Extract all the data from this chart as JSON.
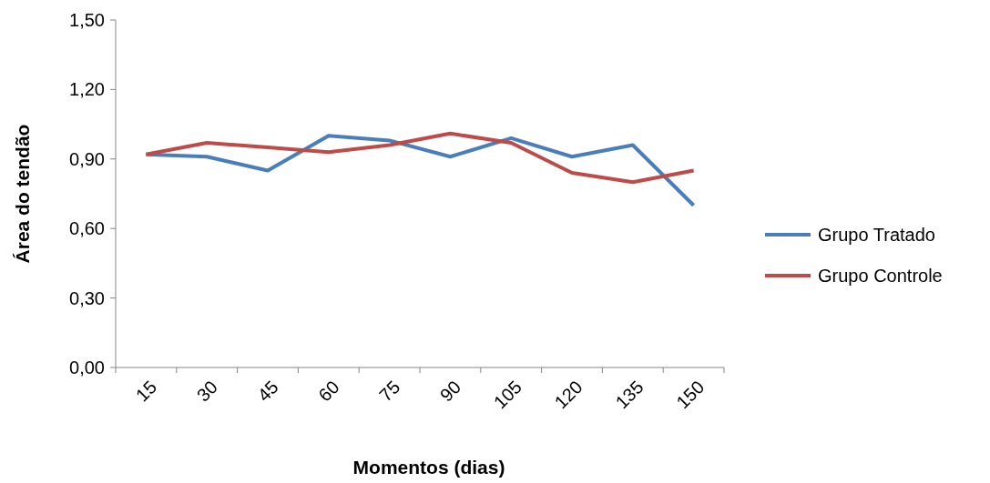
{
  "chart_data": {
    "type": "line",
    "xlabel": "Momentos (dias)",
    "ylabel": "Área do tendão",
    "categories": [
      "15",
      "30",
      "45",
      "60",
      "75",
      "90",
      "105",
      "120",
      "135",
      "150"
    ],
    "series": [
      {
        "name": "Grupo Tratado",
        "color": "#4a7ebb",
        "values": [
          0.92,
          0.91,
          0.85,
          1.0,
          0.98,
          0.91,
          0.99,
          0.91,
          0.96,
          0.7
        ]
      },
      {
        "name": "Grupo Controle",
        "color": "#be4b48",
        "values": [
          0.92,
          0.97,
          0.95,
          0.93,
          0.96,
          1.01,
          0.97,
          0.84,
          0.8,
          0.85
        ]
      }
    ],
    "ylim": [
      0,
      1.5
    ],
    "yticks": [
      {
        "value": 0,
        "label": "0,00"
      },
      {
        "value": 0.3,
        "label": "0,30"
      },
      {
        "value": 0.6,
        "label": "0,60"
      },
      {
        "value": 0.9,
        "label": "0,90"
      },
      {
        "value": 1.2,
        "label": "1,20"
      },
      {
        "value": 1.5,
        "label": "1,50"
      }
    ],
    "legend": "right",
    "marker": "none",
    "line_style": "solid",
    "grid": false
  }
}
